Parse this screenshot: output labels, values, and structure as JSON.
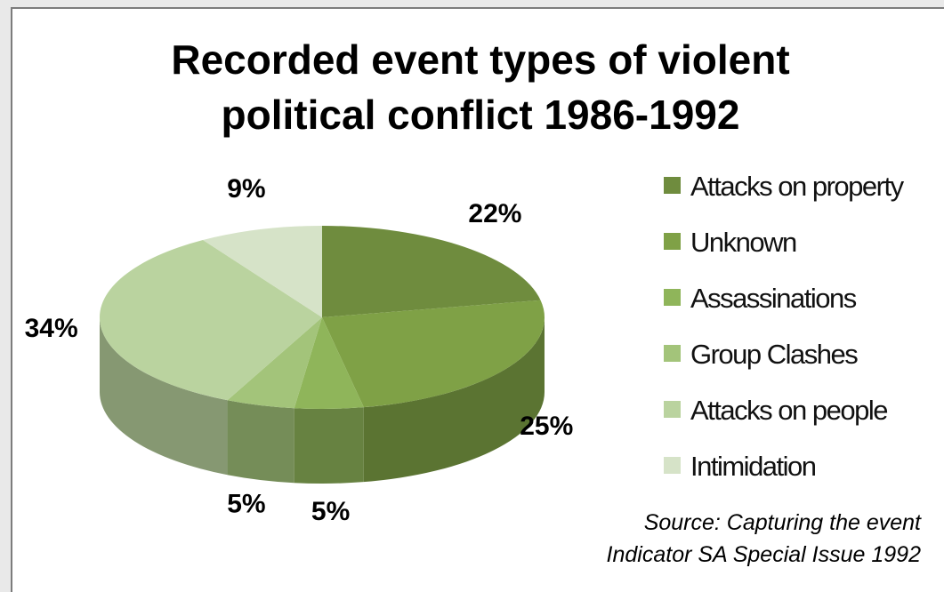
{
  "chart_data": {
    "type": "pie",
    "title": [
      "Recorded event types of violent",
      "political conflict 1986-1992"
    ],
    "slices": [
      {
        "label": "Attacks on property",
        "value": 22,
        "pct_label": "22%",
        "color": "#6f8c3e"
      },
      {
        "label": "Unknown",
        "value": 25,
        "pct_label": "25%",
        "color": "#7fa146"
      },
      {
        "label": "Assassinations",
        "value": 5,
        "pct_label": "5%",
        "color": "#8fb55a"
      },
      {
        "label": "Group Clashes",
        "value": 5,
        "pct_label": "5%",
        "color": "#a3c47a"
      },
      {
        "label": "Attacks on people",
        "value": 34,
        "pct_label": "34%",
        "color": "#bad39f"
      },
      {
        "label": "Intimidation",
        "value": 9,
        "pct_label": "9%",
        "color": "#d6e3c8"
      }
    ],
    "legend_position": "right",
    "style": "3d"
  },
  "source": [
    "Source: Capturing the event",
    "Indicator SA Special Issue 1992"
  ]
}
